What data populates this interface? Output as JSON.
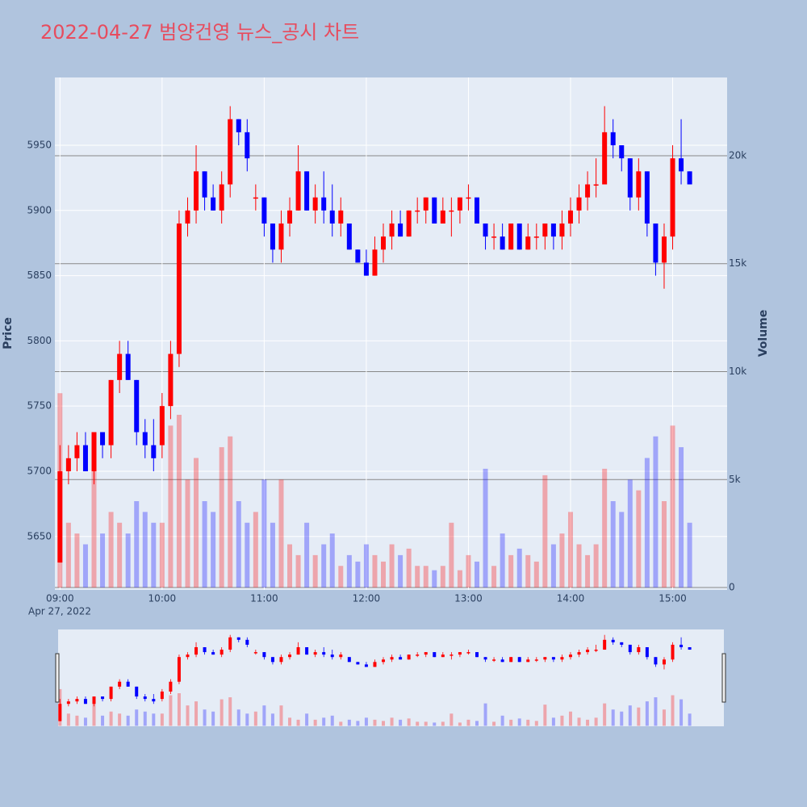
{
  "chart_data": {
    "type": "candlestick",
    "title": "2022-04-27 범양건영 뉴스_공시 차트",
    "ylabel": "Price",
    "y2label": "Volume",
    "x_date_label": "Apr 27, 2022",
    "increasing_color": "#ff0000",
    "decreasing_color": "#0000ff",
    "xlim": [
      "08:57",
      "15:32"
    ],
    "xticks": [
      "09:00",
      "10:00",
      "11:00",
      "12:00",
      "13:00",
      "14:00",
      "15:00"
    ],
    "ylim": [
      5609,
      6002
    ],
    "yticks": [
      5650,
      5700,
      5750,
      5800,
      5850,
      5900,
      5950
    ],
    "y2lim": [
      -112,
      23626
    ],
    "y2ticks": [
      0,
      {
        "value": 5000,
        "label": "5k"
      },
      {
        "value": 10000,
        "label": "10k"
      },
      {
        "value": 15000,
        "label": "15k"
      },
      {
        "value": 20000,
        "label": "20k"
      }
    ],
    "x": [
      "09:00",
      "09:05",
      "09:10",
      "09:15",
      "09:20",
      "09:25",
      "09:30",
      "09:35",
      "09:40",
      "09:45",
      "09:50",
      "09:55",
      "10:00",
      "10:05",
      "10:10",
      "10:15",
      "10:20",
      "10:25",
      "10:30",
      "10:35",
      "10:40",
      "10:45",
      "10:50",
      "10:55",
      "11:00",
      "11:05",
      "11:10",
      "11:15",
      "11:20",
      "11:25",
      "11:30",
      "11:35",
      "11:40",
      "11:45",
      "11:50",
      "11:55",
      "12:00",
      "12:05",
      "12:10",
      "12:15",
      "12:20",
      "12:25",
      "12:30",
      "12:35",
      "12:40",
      "12:45",
      "12:50",
      "12:55",
      "13:00",
      "13:05",
      "13:10",
      "13:15",
      "13:20",
      "13:25",
      "13:30",
      "13:35",
      "13:40",
      "13:45",
      "13:50",
      "13:55",
      "14:00",
      "14:05",
      "14:10",
      "14:15",
      "14:20",
      "14:25",
      "14:30",
      "14:35",
      "14:40",
      "14:45",
      "14:50",
      "14:55",
      "15:00",
      "15:05",
      "15:10"
    ],
    "open": [
      5630,
      5700,
      5710,
      5720,
      5700,
      5730,
      5720,
      5770,
      5790,
      5770,
      5730,
      5720,
      5720,
      5750,
      5790,
      5890,
      5900,
      5930,
      5910,
      5900,
      5920,
      5970,
      5960,
      5910,
      5910,
      5890,
      5870,
      5890,
      5900,
      5930,
      5900,
      5910,
      5900,
      5890,
      5890,
      5870,
      5860,
      5850,
      5870,
      5880,
      5890,
      5880,
      5900,
      5900,
      5910,
      5890,
      5900,
      5900,
      5910,
      5910,
      5890,
      5880,
      5880,
      5870,
      5890,
      5870,
      5880,
      5880,
      5890,
      5880,
      5890,
      5900,
      5910,
      5920,
      5920,
      5960,
      5950,
      5940,
      5910,
      5930,
      5890,
      5860,
      5880,
      5940,
      5930
    ],
    "high": [
      5720,
      5720,
      5730,
      5730,
      5730,
      5730,
      5770,
      5800,
      5800,
      5770,
      5740,
      5740,
      5760,
      5800,
      5900,
      5910,
      5950,
      5930,
      5920,
      5930,
      5980,
      5970,
      5970,
      5920,
      5910,
      5890,
      5900,
      5910,
      5950,
      5930,
      5920,
      5930,
      5920,
      5910,
      5890,
      5870,
      5870,
      5880,
      5890,
      5900,
      5900,
      5900,
      5910,
      5910,
      5910,
      5910,
      5910,
      5910,
      5920,
      5910,
      5890,
      5890,
      5890,
      5890,
      5890,
      5890,
      5890,
      5890,
      5890,
      5900,
      5910,
      5920,
      5930,
      5940,
      5980,
      5970,
      5950,
      5940,
      5940,
      5930,
      5890,
      5890,
      5950,
      5970,
      5930
    ],
    "low": [
      5630,
      5690,
      5700,
      5700,
      5690,
      5710,
      5710,
      5760,
      5770,
      5720,
      5710,
      5700,
      5710,
      5740,
      5780,
      5880,
      5890,
      5900,
      5900,
      5890,
      5910,
      5950,
      5930,
      5900,
      5880,
      5860,
      5860,
      5880,
      5900,
      5900,
      5890,
      5890,
      5880,
      5880,
      5870,
      5860,
      5850,
      5850,
      5860,
      5870,
      5880,
      5880,
      5890,
      5890,
      5890,
      5890,
      5880,
      5890,
      5900,
      5890,
      5870,
      5870,
      5870,
      5870,
      5870,
      5870,
      5870,
      5870,
      5870,
      5870,
      5880,
      5890,
      5900,
      5910,
      5920,
      5940,
      5930,
      5900,
      5900,
      5880,
      5850,
      5840,
      5870,
      5920,
      5920
    ],
    "close": [
      5700,
      5710,
      5720,
      5700,
      5730,
      5720,
      5770,
      5790,
      5770,
      5730,
      5720,
      5710,
      5750,
      5790,
      5890,
      5900,
      5930,
      5910,
      5900,
      5920,
      5970,
      5960,
      5940,
      5910,
      5890,
      5870,
      5890,
      5900,
      5930,
      5900,
      5910,
      5900,
      5890,
      5900,
      5870,
      5860,
      5850,
      5870,
      5880,
      5890,
      5880,
      5900,
      5900,
      5910,
      5890,
      5900,
      5900,
      5910,
      5910,
      5890,
      5880,
      5880,
      5870,
      5890,
      5870,
      5880,
      5880,
      5890,
      5880,
      5890,
      5900,
      5910,
      5920,
      5920,
      5960,
      5950,
      5940,
      5910,
      5930,
      5890,
      5860,
      5880,
      5940,
      5930,
      5920
    ],
    "volume": [
      9000,
      3000,
      2500,
      2000,
      5500,
      2500,
      3500,
      3000,
      2500,
      4000,
      3500,
      3000,
      3000,
      7500,
      8000,
      5000,
      6000,
      4000,
      3500,
      6500,
      7000,
      4000,
      3000,
      3500,
      5000,
      3000,
      5000,
      2000,
      1500,
      3000,
      1500,
      2000,
      2500,
      1000,
      1500,
      1200,
      2000,
      1500,
      1200,
      2000,
      1500,
      1800,
      1000,
      1000,
      800,
      1000,
      3000,
      800,
      1500,
      1200,
      5500,
      1000,
      2500,
      1500,
      1800,
      1500,
      1200,
      5200,
      2000,
      2500,
      3500,
      2000,
      1500,
      2000,
      5500,
      4000,
      3500,
      5000,
      4500,
      6000,
      7000,
      4000,
      7500,
      6500,
      3000
    ]
  }
}
